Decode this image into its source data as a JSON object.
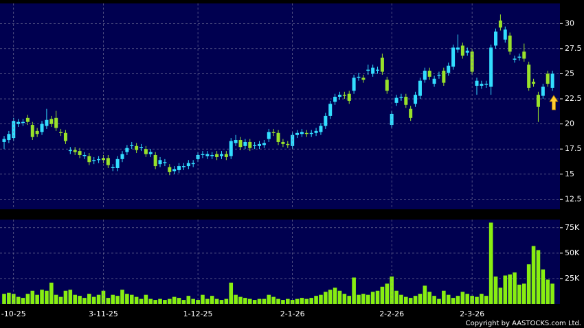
{
  "chart_data": [
    {
      "type": "candlestick",
      "up_color": "#33ddff",
      "down_color": "#99e22a",
      "grid": true,
      "ylim": [
        11.5,
        32
      ],
      "yticks": [
        12.5,
        15,
        17.5,
        20,
        22.5,
        25,
        27.5,
        30
      ],
      "open": [
        18.2,
        18.4,
        18.6,
        20.0,
        20.1,
        20.6,
        19.9,
        19.3,
        19.2,
        19.8,
        20.5,
        20.6,
        19.2,
        19.1,
        17.3,
        17.4,
        17.3,
        16.8,
        16.8,
        16.3,
        16.4,
        16.6,
        16.6,
        15.6,
        15.6,
        16.5,
        17.2,
        17.8,
        17.8,
        17.6,
        17.5,
        17.0,
        16.9,
        16.0,
        16.1,
        15.7,
        15.3,
        15.4,
        15.7,
        15.8,
        16.0,
        16.5,
        16.9,
        16.8,
        16.8,
        17.0,
        16.8,
        17.0,
        16.8,
        18.1,
        18.4,
        17.8,
        18.2,
        17.8,
        17.8,
        17.9,
        18.5,
        19.2,
        19.1,
        18.2,
        18.0,
        17.8,
        18.9,
        19.0,
        19.1,
        19.0,
        19.1,
        19.2,
        19.8,
        20.8,
        22.2,
        22.7,
        22.9,
        23.0,
        23.3,
        24.6,
        24.6,
        25.3,
        25.0,
        25.3,
        26.6,
        24.4,
        19.9,
        22.1,
        22.6,
        22.7,
        21.5,
        22.0,
        22.8,
        24.4,
        25.3,
        24.0,
        24.8,
        25.3,
        25.1,
        25.7,
        27.4,
        27.8,
        27.1,
        27.2,
        23.8,
        23.8,
        23.9,
        23.7,
        27.8,
        30.3,
        28.4,
        28.8,
        26.4,
        26.6,
        27.2,
        25.9,
        24.2,
        22.9,
        22.8,
        25.0,
        23.6
      ],
      "high": [
        18.8,
        19.3,
        20.6,
        20.5,
        20.5,
        20.9,
        20.2,
        19.6,
        20.3,
        21.5,
        20.8,
        21.3,
        19.5,
        19.4,
        17.7,
        17.7,
        17.6,
        17.2,
        17.1,
        16.7,
        16.8,
        16.9,
        16.9,
        16.0,
        16.8,
        17.3,
        17.9,
        18.2,
        18.1,
        18.0,
        17.8,
        17.5,
        17.2,
        16.7,
        16.5,
        16.0,
        15.8,
        16.1,
        16.1,
        16.4,
        16.4,
        17.2,
        17.3,
        17.3,
        17.2,
        17.3,
        17.3,
        17.3,
        18.6,
        18.9,
        18.7,
        18.5,
        18.5,
        18.2,
        18.3,
        18.4,
        19.5,
        19.5,
        19.4,
        18.5,
        18.3,
        19.2,
        19.4,
        19.5,
        19.4,
        19.4,
        19.6,
        20.1,
        21.1,
        22.3,
        23.0,
        23.2,
        23.2,
        23.3,
        24.9,
        25.1,
        24.9,
        25.9,
        25.9,
        25.7,
        27.0,
        24.7,
        21.3,
        22.9,
        23.0,
        23.0,
        21.8,
        23.2,
        24.6,
        25.6,
        25.6,
        24.8,
        25.2,
        25.6,
        26.1,
        27.9,
        28.9,
        28.1,
        27.6,
        27.5,
        24.6,
        24.3,
        24.3,
        27.9,
        29.5,
        30.9,
        29.7,
        29.1,
        26.8,
        27.0,
        28.0,
        26.2,
        24.5,
        23.2,
        24.0,
        25.3,
        25.3
      ],
      "low": [
        17.5,
        18.1,
        18.3,
        19.7,
        19.8,
        19.9,
        18.4,
        18.7,
        18.9,
        19.5,
        19.7,
        19.3,
        18.8,
        18.0,
        17.0,
        16.9,
        16.6,
        16.5,
        15.9,
        16.0,
        16.1,
        16.1,
        15.6,
        15.3,
        15.3,
        16.2,
        16.9,
        17.5,
        17.1,
        17.3,
        16.7,
        16.7,
        15.5,
        15.7,
        15.8,
        14.9,
        15.0,
        15.1,
        15.4,
        15.5,
        15.7,
        16.2,
        16.6,
        16.5,
        16.5,
        16.4,
        16.5,
        16.4,
        16.5,
        17.8,
        17.4,
        17.5,
        17.3,
        17.5,
        17.5,
        17.6,
        18.2,
        18.8,
        17.9,
        17.7,
        17.6,
        17.5,
        18.6,
        18.7,
        18.7,
        18.7,
        18.8,
        18.9,
        19.5,
        20.5,
        21.9,
        22.4,
        22.5,
        22.0,
        23.0,
        24.3,
        24.1,
        24.9,
        24.7,
        25.0,
        24.9,
        23.0,
        19.6,
        21.8,
        22.3,
        21.6,
        20.3,
        21.7,
        22.5,
        24.1,
        24.4,
        23.7,
        24.5,
        23.8,
        24.8,
        25.4,
        27.1,
        26.5,
        26.8,
        24.9,
        22.9,
        23.5,
        23.6,
        22.9,
        27.5,
        29.3,
        28.1,
        26.9,
        26.1,
        26.3,
        26.2,
        23.3,
        23.7,
        20.2,
        22.5,
        23.7,
        23.3
      ],
      "close": [
        18.5,
        19.0,
        20.3,
        20.2,
        20.2,
        20.2,
        18.7,
        19.0,
        20.0,
        20.4,
        20.0,
        19.6,
        19.1,
        18.3,
        17.4,
        17.2,
        16.9,
        16.9,
        16.2,
        16.4,
        16.5,
        16.4,
        15.9,
        15.7,
        16.5,
        17.0,
        17.6,
        17.9,
        17.4,
        17.7,
        17.0,
        17.2,
        15.8,
        16.4,
        16.2,
        15.2,
        15.5,
        15.8,
        15.8,
        16.1,
        16.1,
        16.9,
        17.0,
        17.0,
        16.9,
        16.7,
        17.0,
        16.7,
        18.3,
        18.4,
        17.7,
        18.2,
        17.6,
        17.9,
        18.0,
        18.1,
        19.2,
        19.1,
        18.2,
        18.0,
        17.9,
        18.9,
        19.1,
        19.2,
        19.0,
        19.1,
        19.3,
        19.8,
        20.8,
        22.0,
        22.7,
        22.9,
        22.8,
        22.3,
        24.6,
        24.7,
        24.4,
        25.4,
        25.6,
        25.4,
        25.2,
        23.3,
        21.0,
        22.6,
        22.7,
        21.9,
        20.6,
        22.9,
        24.3,
        25.3,
        24.7,
        24.5,
        24.9,
        24.1,
        25.8,
        27.6,
        27.6,
        26.8,
        27.3,
        25.2,
        24.3,
        24.0,
        24.0,
        27.6,
        29.2,
        29.6,
        29.4,
        27.2,
        26.5,
        26.7,
        26.5,
        23.6,
        24.0,
        21.7,
        23.7,
        24.0,
        25.0
      ]
    },
    {
      "type": "bar",
      "color": "#88ee11",
      "grid": true,
      "ylim": [
        0,
        83
      ],
      "yticks": [
        {
          "value": 25,
          "label": "25K"
        },
        {
          "value": 50,
          "label": "50K"
        },
        {
          "value": 75,
          "label": "75K"
        }
      ],
      "categories": [
        null,
        null,
        "-10-25",
        null,
        null,
        null,
        null,
        null,
        null,
        null,
        null,
        null,
        null,
        null,
        null,
        null,
        null,
        null,
        null,
        null,
        null,
        "3-11-25",
        null,
        null,
        null,
        null,
        null,
        null,
        null,
        null,
        null,
        null,
        null,
        null,
        null,
        null,
        null,
        null,
        null,
        null,
        null,
        "1-12-25",
        null,
        null,
        null,
        null,
        null,
        null,
        null,
        null,
        null,
        null,
        null,
        null,
        null,
        null,
        null,
        null,
        null,
        null,
        null,
        "2-1-26",
        null,
        null,
        null,
        null,
        null,
        null,
        null,
        null,
        null,
        null,
        null,
        null,
        null,
        null,
        null,
        null,
        null,
        null,
        null,
        null,
        "2-2-26",
        null,
        null,
        null,
        null,
        null,
        null,
        null,
        null,
        null,
        null,
        null,
        null,
        null,
        null,
        null,
        null,
        "2-3-26",
        null,
        null,
        null,
        null,
        null,
        null,
        null,
        null,
        null,
        null,
        null,
        null,
        null,
        null,
        null,
        null,
        null
      ],
      "values": [
        10,
        11,
        10,
        7,
        6,
        10,
        13,
        9,
        14,
        13,
        21,
        9,
        7,
        13,
        14,
        9,
        8,
        6,
        10,
        7,
        9,
        13,
        6,
        9,
        8,
        14,
        10,
        9,
        7,
        5,
        9,
        5,
        4,
        5,
        4,
        5,
        7,
        6,
        4,
        8,
        5,
        4,
        9,
        5,
        8,
        5,
        4,
        5,
        21,
        9,
        7,
        6,
        5,
        4,
        5,
        5,
        9,
        7,
        5,
        4,
        5,
        4,
        5,
        6,
        5,
        6,
        8,
        9,
        12,
        14,
        16,
        13,
        10,
        8,
        26,
        9,
        10,
        9,
        12,
        13,
        17,
        20,
        27,
        13,
        9,
        7,
        6,
        8,
        10,
        18,
        12,
        8,
        5,
        13,
        9,
        6,
        8,
        12,
        10,
        8,
        7,
        10,
        8,
        80,
        27,
        16,
        28,
        29,
        31,
        19,
        20,
        39,
        57,
        53,
        34,
        24,
        20
      ]
    }
  ],
  "copyright": "Copyright by AASTOCKS.com Ltd."
}
